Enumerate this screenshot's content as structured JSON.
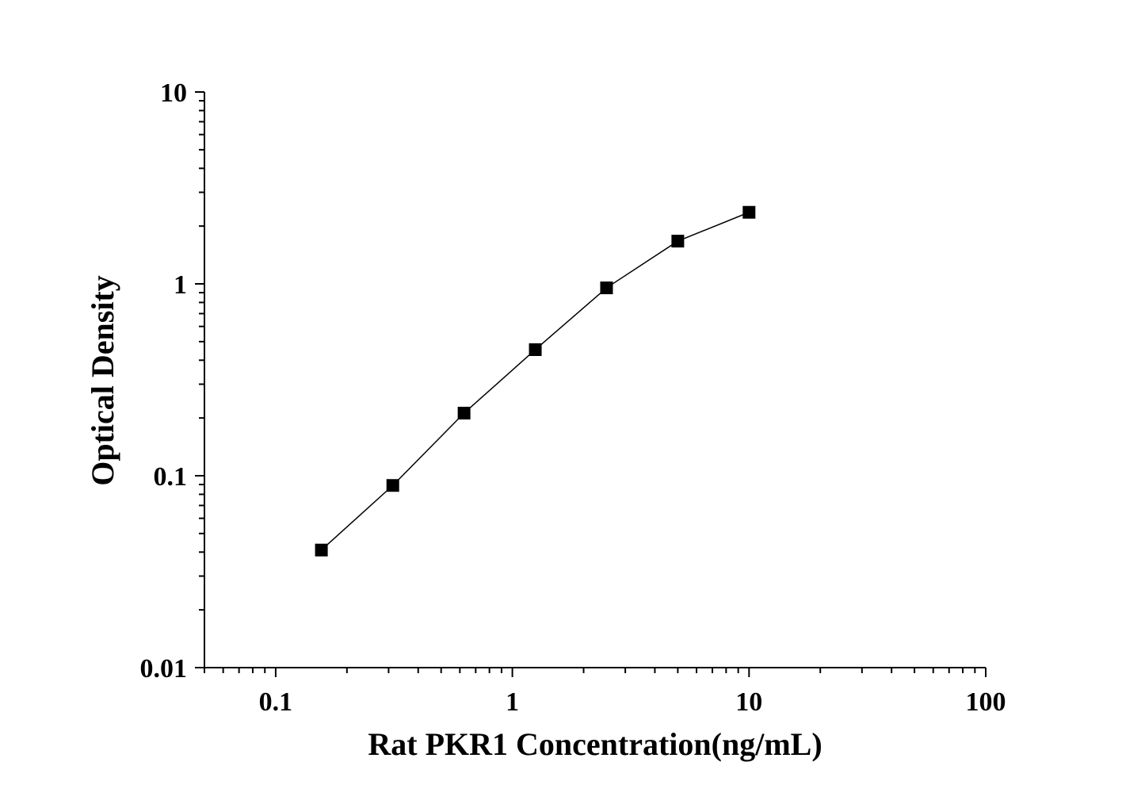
{
  "chart_data": {
    "type": "line",
    "title": "",
    "xlabel": "Rat PKR1 Concentration(ng/mL)",
    "ylabel": "Optical Density",
    "x_scale": "log",
    "y_scale": "log",
    "xlim": [
      0.05,
      100
    ],
    "ylim": [
      0.01,
      10
    ],
    "x_ticks": [
      0.1,
      1,
      10,
      100
    ],
    "x_tick_labels": [
      "0.1",
      "1",
      "10",
      "100"
    ],
    "y_ticks": [
      0.01,
      0.1,
      1,
      10
    ],
    "y_tick_labels": [
      "0.01",
      "0.1",
      "1",
      "10"
    ],
    "grid": false,
    "marker": "square",
    "color": "#000000",
    "series": [
      {
        "x": [
          0.156,
          0.3125,
          0.625,
          1.25,
          2.5,
          5,
          10
        ],
        "y": [
          0.041,
          0.089,
          0.212,
          0.454,
          0.953,
          1.67,
          2.36
        ]
      }
    ]
  }
}
